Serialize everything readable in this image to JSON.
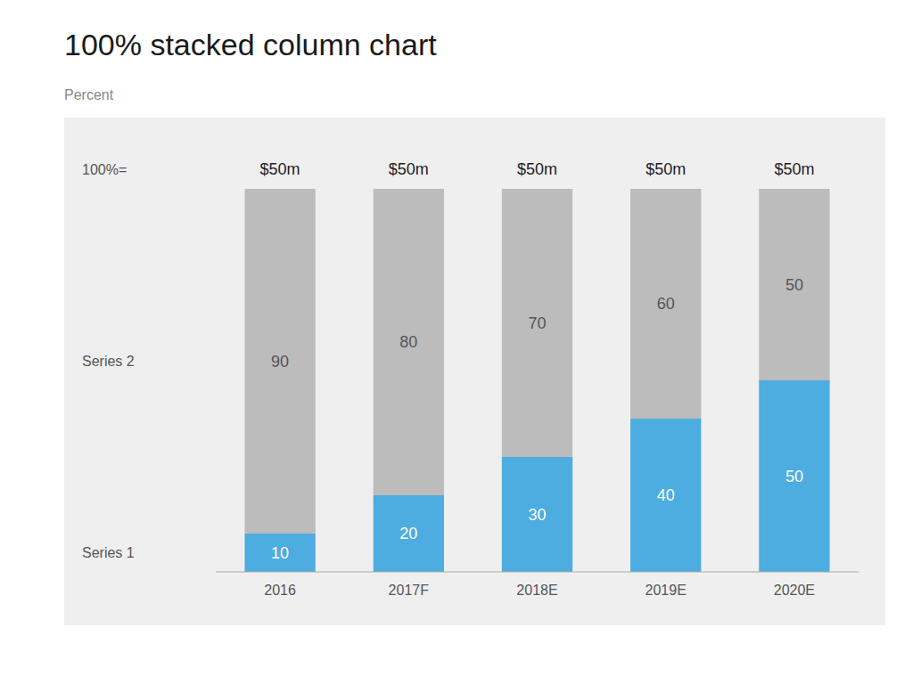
{
  "chart_data": {
    "type": "bar",
    "stacked": true,
    "title": "100% stacked column chart",
    "subtitle": "Percent",
    "categories": [
      "2016",
      "2017F",
      "2018E",
      "2019E",
      "2020E"
    ],
    "series": [
      {
        "name": "Series 1",
        "color": "#4DACE0",
        "values": [
          10,
          20,
          30,
          40,
          50
        ]
      },
      {
        "name": "Series 2",
        "color": "#BCBCBC",
        "values": [
          90,
          80,
          70,
          60,
          50
        ]
      }
    ],
    "ylim": [
      0,
      100
    ],
    "grid": false,
    "data_labels": true,
    "tick_labels": "x",
    "annotations": [
      {
        "text": "100%="
      },
      {
        "text": "$50m",
        "x": "2016"
      },
      {
        "text": "$50m",
        "x": "2017F"
      },
      {
        "text": "$50m",
        "x": "2018E"
      },
      {
        "text": "$50m",
        "x": "2019E"
      },
      {
        "text": "$50m",
        "x": "2020E"
      }
    ]
  }
}
